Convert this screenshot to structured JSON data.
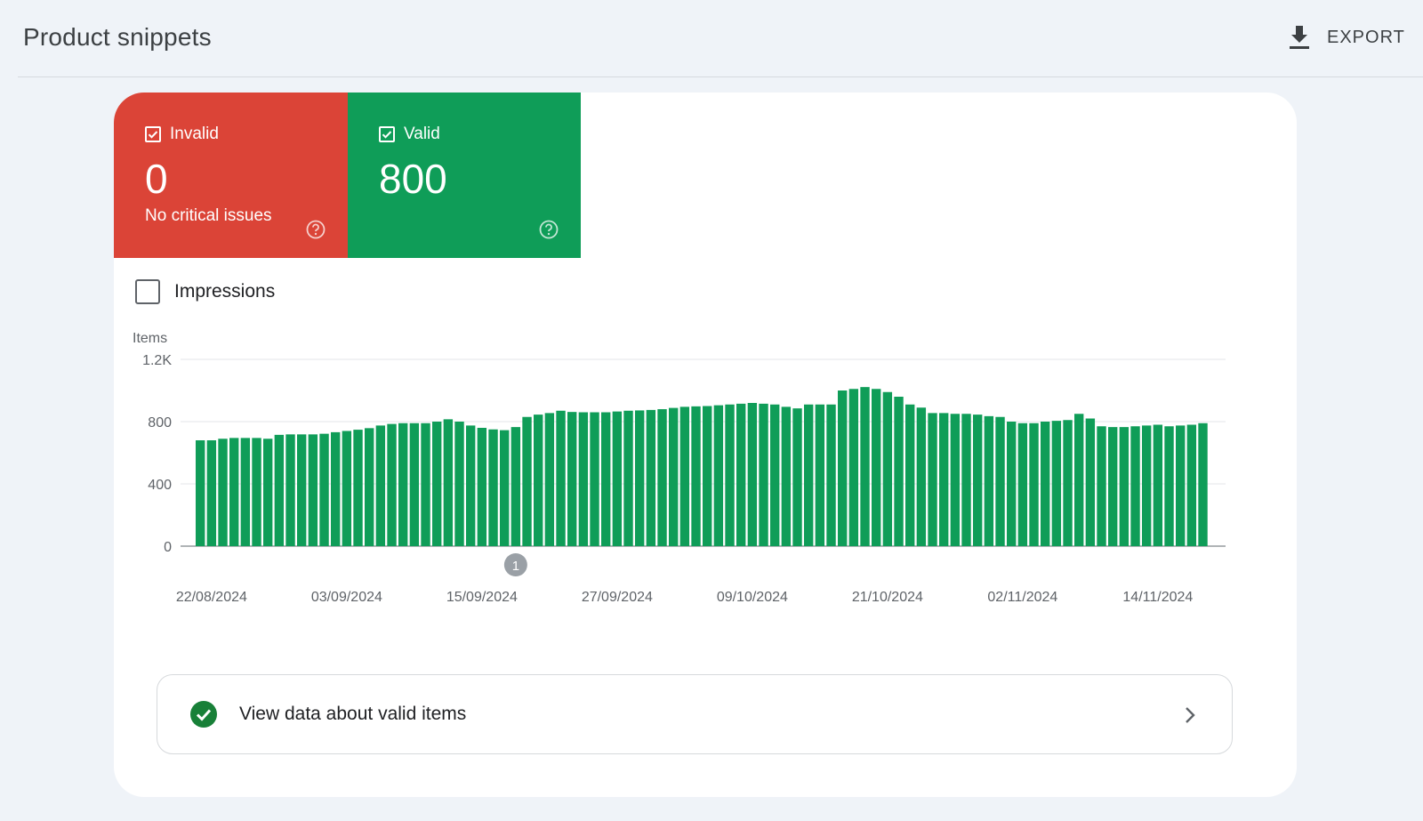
{
  "header": {
    "title": "Product snippets",
    "export_label": "EXPORT"
  },
  "tiles": {
    "invalid": {
      "label": "Invalid",
      "count": "0",
      "subtitle": "No critical issues",
      "color": "#db4437"
    },
    "valid": {
      "label": "Valid",
      "count": "800",
      "color": "#0f9d58"
    }
  },
  "impressions": {
    "label": "Impressions",
    "checked": false
  },
  "view_link": {
    "label": "View data about valid items"
  },
  "chart_data": {
    "type": "bar",
    "ylabel": "Items",
    "ylim": [
      0,
      1200
    ],
    "yticks": [
      0,
      400,
      800,
      1200
    ],
    "ytick_labels": [
      "0",
      "400",
      "800",
      "1.2K"
    ],
    "xtick_labels": [
      "22/08/2024",
      "03/09/2024",
      "15/09/2024",
      "27/09/2024",
      "09/10/2024",
      "21/10/2024",
      "02/11/2024",
      "14/11/2024"
    ],
    "bar_color": "#0f9d58",
    "annotation": {
      "label": "1",
      "date": "18/09/2024"
    },
    "dates": [
      "21/08/2024",
      "22/08/2024",
      "23/08/2024",
      "24/08/2024",
      "25/08/2024",
      "26/08/2024",
      "27/08/2024",
      "28/08/2024",
      "29/08/2024",
      "30/08/2024",
      "31/08/2024",
      "01/09/2024",
      "02/09/2024",
      "03/09/2024",
      "04/09/2024",
      "05/09/2024",
      "06/09/2024",
      "07/09/2024",
      "08/09/2024",
      "09/09/2024",
      "10/09/2024",
      "11/09/2024",
      "12/09/2024",
      "13/09/2024",
      "14/09/2024",
      "15/09/2024",
      "16/09/2024",
      "17/09/2024",
      "18/09/2024",
      "19/09/2024",
      "20/09/2024",
      "21/09/2024",
      "22/09/2024",
      "23/09/2024",
      "24/09/2024",
      "25/09/2024",
      "26/09/2024",
      "27/09/2024",
      "28/09/2024",
      "29/09/2024",
      "30/09/2024",
      "01/10/2024",
      "02/10/2024",
      "03/10/2024",
      "04/10/2024",
      "05/10/2024",
      "06/10/2024",
      "07/10/2024",
      "08/10/2024",
      "09/10/2024",
      "10/10/2024",
      "11/10/2024",
      "12/10/2024",
      "13/10/2024",
      "14/10/2024",
      "15/10/2024",
      "16/10/2024",
      "17/10/2024",
      "18/10/2024",
      "19/10/2024",
      "20/10/2024",
      "21/10/2024",
      "22/10/2024",
      "23/10/2024",
      "24/10/2024",
      "25/10/2024",
      "26/10/2024",
      "27/10/2024",
      "28/10/2024",
      "29/10/2024",
      "30/10/2024",
      "31/10/2024",
      "01/11/2024",
      "02/11/2024",
      "03/11/2024",
      "04/11/2024",
      "05/11/2024",
      "06/11/2024",
      "07/11/2024",
      "08/11/2024",
      "09/11/2024",
      "10/11/2024",
      "11/11/2024",
      "12/11/2024",
      "13/11/2024",
      "14/11/2024",
      "15/11/2024",
      "16/11/2024",
      "17/11/2024",
      "18/11/2024"
    ],
    "values": [
      680,
      680,
      690,
      695,
      695,
      695,
      690,
      715,
      718,
      718,
      718,
      722,
      732,
      740,
      748,
      758,
      775,
      785,
      790,
      790,
      790,
      800,
      815,
      800,
      775,
      760,
      750,
      745,
      765,
      830,
      845,
      855,
      870,
      862,
      860,
      860,
      860,
      865,
      870,
      872,
      875,
      880,
      888,
      895,
      898,
      900,
      905,
      910,
      915,
      920,
      915,
      910,
      895,
      885,
      910,
      910,
      910,
      1000,
      1010,
      1022,
      1010,
      990,
      960,
      910,
      890,
      855,
      855,
      850,
      850,
      845,
      835,
      830,
      800,
      790,
      790,
      800,
      805,
      810,
      850,
      820,
      770,
      765,
      765,
      770,
      775,
      780,
      770,
      775,
      780,
      790
    ]
  }
}
